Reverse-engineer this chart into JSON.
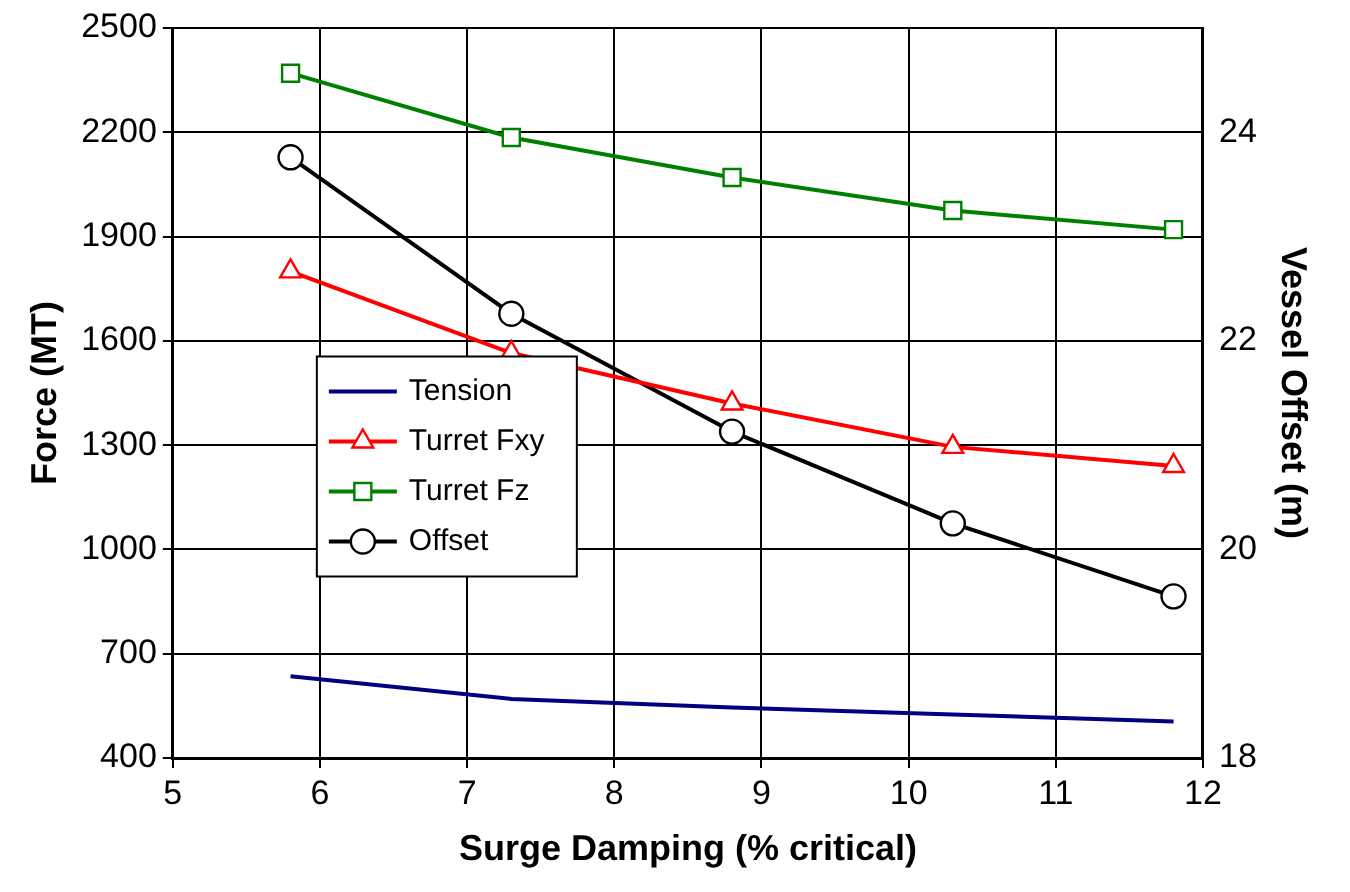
{
  "chart_data": {
    "type": "line",
    "xlabel": "Surge Damping (% critical)",
    "ylabel": "Force (MT)",
    "y2label": "Vessel Offset (m)",
    "xlim": [
      5,
      12
    ],
    "xticks": [
      5,
      6,
      7,
      8,
      9,
      10,
      11,
      12
    ],
    "ylim": [
      400,
      2500
    ],
    "yticks": [
      400,
      700,
      1000,
      1300,
      1600,
      1900,
      2200,
      2500
    ],
    "y2lim": [
      18,
      25
    ],
    "y2ticks": [
      18,
      20,
      22,
      24
    ],
    "grid": true,
    "legend": "left",
    "series": [
      {
        "name": "Tension",
        "color": "#000080",
        "marker": "none",
        "x": [
          5.8,
          7.3,
          8.8,
          10.3,
          11.8
        ],
        "values": [
          635,
          570,
          545,
          525,
          505
        ]
      },
      {
        "name": "Turret Fxy",
        "color": "#ff0000",
        "marker": "triangle",
        "x": [
          5.8,
          7.3,
          8.8,
          10.3,
          11.8
        ],
        "values": [
          1800,
          1565,
          1420,
          1295,
          1240
        ]
      },
      {
        "name": "Turret Fz",
        "color": "#008000",
        "marker": "square",
        "x": [
          5.8,
          7.3,
          8.8,
          10.3,
          11.8
        ],
        "values": [
          2370,
          2185,
          2070,
          1975,
          1920
        ]
      },
      {
        "name": "Offset",
        "color": "#000000",
        "marker": "circle",
        "axis": "y2",
        "x": [
          5.8,
          7.3,
          8.8,
          10.3,
          11.8
        ],
        "values": [
          23.76,
          22.26,
          21.13,
          20.25,
          19.55
        ]
      }
    ]
  }
}
